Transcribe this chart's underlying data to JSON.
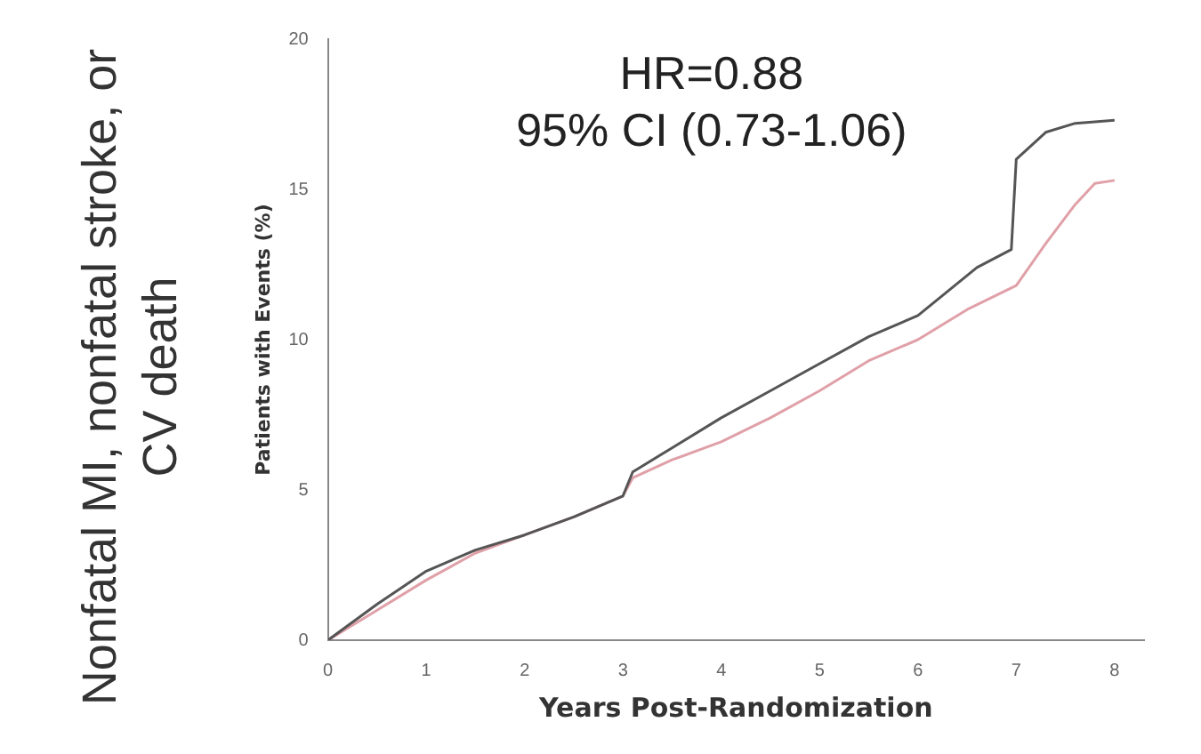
{
  "chart_data": {
    "type": "line",
    "title": "Nonfatal MI, nonfatal stroke, or CV death",
    "xlabel": "Years Post-Randomization",
    "ylabel": "Patients with Events (%)",
    "annotations": [
      "HR=0.88",
      "95% CI (0.73-1.06)"
    ],
    "xlim": [
      0,
      8.3
    ],
    "xticks": [
      0,
      1,
      2,
      3,
      4,
      5,
      6,
      7,
      8
    ],
    "ylim": [
      0,
      20
    ],
    "yticks": [
      0,
      5,
      10,
      15,
      20
    ],
    "grid": false,
    "legend": false,
    "marker": "none",
    "line_style": "solid",
    "series": [
      {
        "color": "#555555",
        "x": [
          0,
          0.5,
          1,
          1.5,
          2,
          2.5,
          3,
          3.1,
          3.5,
          4,
          4.5,
          5,
          5.5,
          6,
          6.3,
          6.6,
          6.95,
          7,
          7.3,
          7.6,
          8
        ],
        "values": [
          0,
          1.2,
          2.3,
          3.0,
          3.5,
          4.1,
          4.8,
          5.6,
          6.4,
          7.4,
          8.3,
          9.2,
          10.1,
          10.8,
          11.6,
          12.4,
          13.0,
          16.0,
          16.9,
          17.2,
          17.3
        ]
      },
      {
        "color": "#e0a0a8",
        "x": [
          0,
          0.5,
          1,
          1.5,
          2,
          2.5,
          3,
          3.1,
          3.5,
          4,
          4.5,
          5,
          5.5,
          6,
          6.5,
          7,
          7.3,
          7.6,
          7.8,
          8
        ],
        "values": [
          0,
          1.0,
          2.0,
          2.9,
          3.5,
          4.1,
          4.8,
          5.4,
          6.0,
          6.6,
          7.4,
          8.3,
          9.3,
          10.0,
          11.0,
          11.8,
          13.2,
          14.5,
          15.2,
          15.3
        ]
      }
    ]
  }
}
